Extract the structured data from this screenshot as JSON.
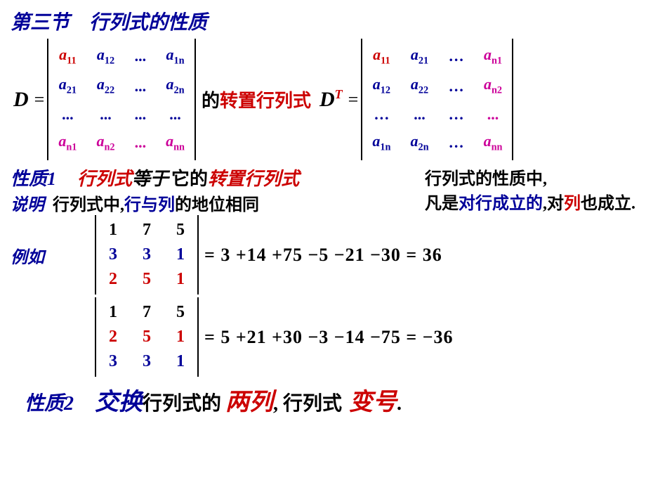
{
  "title": {
    "section": "第三节",
    "topic": "行列式的性质"
  },
  "matrixLine": {
    "D_sym": "D",
    "eq": "=",
    "rows1": [
      [
        {
          "t": "a",
          "s": "11",
          "c": "red"
        },
        {
          "t": "a",
          "s": "12",
          "c": "blue"
        },
        {
          "t": "...",
          "c": "blue"
        },
        {
          "t": "a",
          "s": "1n",
          "c": "blue"
        }
      ],
      [
        {
          "t": "a",
          "s": "21",
          "c": "blue"
        },
        {
          "t": "a",
          "s": "22",
          "c": "blue"
        },
        {
          "t": "...",
          "c": "blue"
        },
        {
          "t": "a",
          "s": "2n",
          "c": "blue"
        }
      ],
      [
        {
          "t": "...",
          "c": "blue"
        },
        {
          "t": "...",
          "c": "blue"
        },
        {
          "t": "...",
          "c": "blue"
        },
        {
          "t": "...",
          "c": "blue"
        }
      ],
      [
        {
          "t": "a",
          "s": "n1",
          "c": "magenta"
        },
        {
          "t": "a",
          "s": "n2",
          "c": "magenta"
        },
        {
          "t": "...",
          "c": "magenta"
        },
        {
          "t": "a",
          "s": "nn",
          "c": "magenta"
        }
      ]
    ],
    "mid": "的",
    "mid_red": "转置行列式",
    "DT": "D",
    "T": "T",
    "rows2": [
      [
        {
          "t": "a",
          "s": "11",
          "c": "red"
        },
        {
          "t": "a",
          "s": "21",
          "c": "blue"
        },
        {
          "t": "…",
          "c": "blue"
        },
        {
          "t": "a",
          "s": "n1",
          "c": "magenta"
        }
      ],
      [
        {
          "t": "a",
          "s": "12",
          "c": "blue"
        },
        {
          "t": "a",
          "s": "22",
          "c": "blue"
        },
        {
          "t": "…",
          "c": "blue"
        },
        {
          "t": "a",
          "s": "n2",
          "c": "magenta"
        }
      ],
      [
        {
          "t": "…",
          "c": "blue"
        },
        {
          "t": "...",
          "c": "blue"
        },
        {
          "t": "…",
          "c": "blue"
        },
        {
          "t": "...",
          "c": "magenta"
        }
      ],
      [
        {
          "t": "a",
          "s": "1n",
          "c": "blue"
        },
        {
          "t": "a",
          "s": "2n",
          "c": "blue"
        },
        {
          "t": "…",
          "c": "blue"
        },
        {
          "t": "a",
          "s": "nn",
          "c": "magenta"
        }
      ]
    ]
  },
  "prop1": {
    "label": "性质1",
    "part1": "行列式",
    "part2": "等于",
    "part3": "它的",
    "part4": "转置行列式",
    "side1": "行列式的性质中,",
    "note_label": "说明",
    "note1": "行列式中,",
    "note2": "行与列",
    "note3": "的地位相同",
    "side2a": "凡是",
    "side2b": "对行成立的",
    "side2c": ",对",
    "side2d": "列",
    "side2e": "也成立."
  },
  "example": {
    "label": "例如",
    "det1": [
      [
        "1",
        "7",
        "5"
      ],
      [
        "3",
        "3",
        "1"
      ],
      [
        "2",
        "5",
        "1"
      ]
    ],
    "det1_row_colors": [
      "black",
      "blue",
      "red"
    ],
    "calc1": "= 3 +14 +75 −5 −21 −30 = 36",
    "det2": [
      [
        "1",
        "7",
        "5"
      ],
      [
        "2",
        "5",
        "1"
      ],
      [
        "3",
        "3",
        "1"
      ]
    ],
    "det2_row_colors": [
      "black",
      "red",
      "blue"
    ],
    "calc2": "= 5 +21 +30 −3 −14 −75 = −36"
  },
  "prop2": {
    "label": "性质2",
    "w1": "交换",
    "w2": "行列式的",
    "w3": "两列",
    "w4": ", 行列式",
    "w5": "变号",
    "w6": "."
  },
  "colors": {
    "blue": "#000099",
    "red": "#cc0000",
    "black": "#000000",
    "magenta": "#cc0099"
  }
}
